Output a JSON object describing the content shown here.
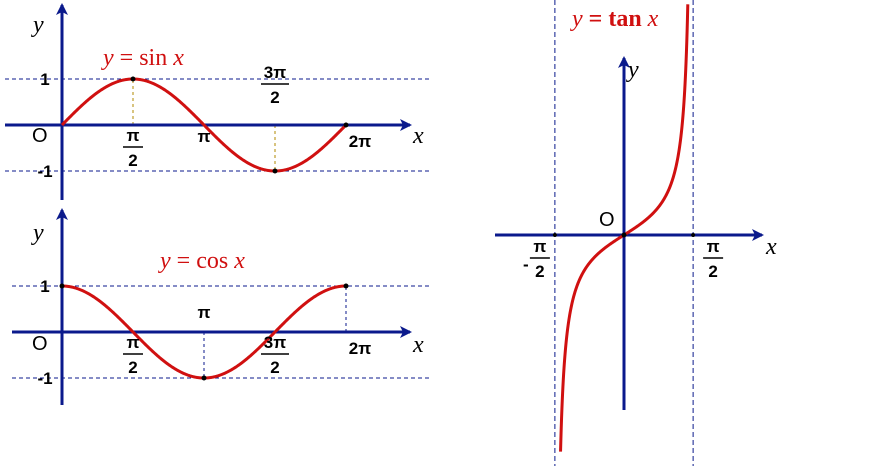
{
  "colors": {
    "curve": "#d01010",
    "axis": "#0b1a8c",
    "grid": "#0b1a8c",
    "drop": "#b08a00",
    "text": "#000000"
  },
  "chart_data": [
    {
      "type": "line",
      "title_prefix": "y = ",
      "title_fn": "sin",
      "title_var": "x",
      "xlabel": "x",
      "ylabel": "y",
      "origin_label": "O",
      "function": "sin",
      "xlim": [
        0,
        6.2832
      ],
      "ylim": [
        -1,
        1
      ],
      "x": [
        0,
        0.3927,
        0.7854,
        1.1781,
        1.5708,
        1.9635,
        2.3562,
        2.7489,
        3.1416,
        3.5343,
        3.927,
        4.3197,
        4.7124,
        5.1051,
        5.4978,
        5.8905,
        6.2832
      ],
      "y": [
        0,
        0.3827,
        0.7071,
        0.9239,
        1,
        0.9239,
        0.7071,
        0.3827,
        0,
        -0.3827,
        -0.7071,
        -0.9239,
        -1,
        -0.9239,
        -0.7071,
        -0.3827,
        0
      ],
      "marked_points": [
        [
          1.5708,
          1
        ],
        [
          4.7124,
          -1
        ],
        [
          6.2832,
          0
        ]
      ],
      "x_ticks": [
        {
          "num": "π",
          "den": "2",
          "value": 1.5708
        },
        {
          "num": "π",
          "den": "",
          "value": 3.1416
        },
        {
          "num": "3π",
          "den": "2",
          "value": 4.7124
        },
        {
          "num": "2π",
          "den": "",
          "value": 6.2832
        }
      ],
      "y_ticks": [
        {
          "label": "1",
          "value": 1
        },
        {
          "label": "-1",
          "value": -1
        }
      ]
    },
    {
      "type": "line",
      "title_prefix": "y = ",
      "title_fn": "cos",
      "title_var": "x",
      "xlabel": "x",
      "ylabel": "y",
      "origin_label": "O",
      "function": "cos",
      "xlim": [
        0,
        6.2832
      ],
      "ylim": [
        -1,
        1
      ],
      "x": [
        0,
        0.3927,
        0.7854,
        1.1781,
        1.5708,
        1.9635,
        2.3562,
        2.7489,
        3.1416,
        3.5343,
        3.927,
        4.3197,
        4.7124,
        5.1051,
        5.4978,
        5.8905,
        6.2832
      ],
      "y": [
        1,
        0.9239,
        0.7071,
        0.3827,
        0,
        -0.3827,
        -0.7071,
        -0.9239,
        -1,
        -0.9239,
        -0.7071,
        -0.3827,
        0,
        0.3827,
        0.7071,
        0.9239,
        1
      ],
      "marked_points": [
        [
          0,
          1
        ],
        [
          3.1416,
          -1
        ],
        [
          6.2832,
          1
        ]
      ],
      "x_ticks": [
        {
          "num": "π",
          "den": "2",
          "value": 1.5708
        },
        {
          "num": "π",
          "den": "",
          "value": 3.1416
        },
        {
          "num": "3π",
          "den": "2",
          "value": 4.7124
        },
        {
          "num": "2π",
          "den": "",
          "value": 6.2832
        }
      ],
      "y_ticks": [
        {
          "label": "1",
          "value": 1
        },
        {
          "label": "-1",
          "value": -1
        }
      ]
    },
    {
      "type": "line",
      "title_prefix": "y = ",
      "title_fn": "tan",
      "title_var": "x",
      "xlabel": "x",
      "ylabel": "y",
      "origin_label": "O",
      "function": "tan",
      "xlim": [
        -1.5708,
        1.5708
      ],
      "asymptotes": [
        -1.5708,
        1.5708
      ],
      "x": [
        -1.52,
        -1.4,
        -1.2,
        -1.0,
        -0.7854,
        -0.5,
        -0.25,
        0,
        0.25,
        0.5,
        0.7854,
        1.0,
        1.2,
        1.4,
        1.52
      ],
      "y": [
        -19.7,
        -5.8,
        -2.57,
        -1.56,
        -1,
        -0.55,
        -0.26,
        0,
        0.26,
        0.55,
        1,
        1.56,
        2.57,
        5.8,
        19.7
      ],
      "x_ticks": [
        {
          "sign": "-",
          "num": "π",
          "den": "2",
          "value": -1.5708
        },
        {
          "sign": "",
          "num": "π",
          "den": "2",
          "value": 1.5708
        }
      ]
    }
  ]
}
